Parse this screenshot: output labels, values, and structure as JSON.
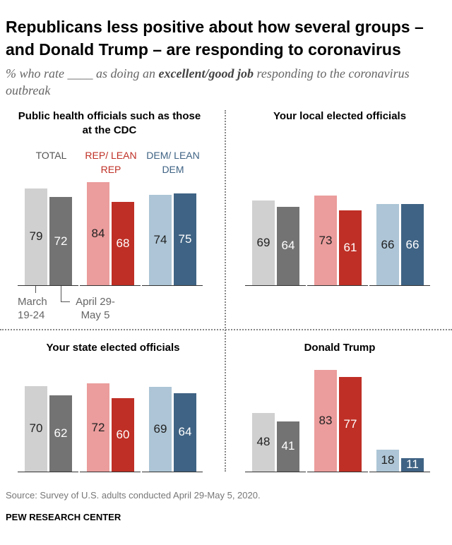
{
  "title": "Republicans less positive about how several groups – and Donald Trump – are responding to coronavirus",
  "subtitle_pre": "% who rate ____ as doing an ",
  "subtitle_bold": "excellent/good job",
  "subtitle_post": " responding to the coronavirus outbreak",
  "groups": {
    "total": "TOTAL",
    "rep": "REP/ LEAN REP",
    "dem": "DEM/ LEAN DEM"
  },
  "annotations": {
    "march": "March 19-24",
    "april": "April 29- May 5"
  },
  "source": "Source: Survey of U.S. adults conducted April 29-May 5, 2020.",
  "footer": "PEW RESEARCH CENTER",
  "colors": {
    "total_mar": "#d0d0d0",
    "total_apr": "#737373",
    "rep_mar": "#eb9c9c",
    "rep_apr": "#bf2f25",
    "dem_mar": "#adc5d6",
    "dem_apr": "#3f6384"
  },
  "chart_data": [
    {
      "type": "bar",
      "title": "Public health officials such as those at the CDC",
      "categories": [
        "Total",
        "Rep/Lean Rep",
        "Dem/Lean Dem"
      ],
      "series": [
        {
          "name": "March 19-24",
          "values": [
            79,
            84,
            74
          ]
        },
        {
          "name": "April 29-May 5",
          "values": [
            72,
            68,
            75
          ]
        }
      ]
    },
    {
      "type": "bar",
      "title": "Your local elected officials",
      "categories": [
        "Total",
        "Rep/Lean Rep",
        "Dem/Lean Dem"
      ],
      "series": [
        {
          "name": "March 19-24",
          "values": [
            69,
            73,
            66
          ]
        },
        {
          "name": "April 29-May 5",
          "values": [
            64,
            61,
            66
          ]
        }
      ]
    },
    {
      "type": "bar",
      "title": "Your state elected officials",
      "categories": [
        "Total",
        "Rep/Lean Rep",
        "Dem/Lean Dem"
      ],
      "series": [
        {
          "name": "March 19-24",
          "values": [
            70,
            72,
            69
          ]
        },
        {
          "name": "April 29-May 5",
          "values": [
            62,
            60,
            64
          ]
        }
      ]
    },
    {
      "type": "bar",
      "title": "Donald Trump",
      "categories": [
        "Total",
        "Rep/Lean Rep",
        "Dem/Lean Dem"
      ],
      "series": [
        {
          "name": "March 19-24",
          "values": [
            48,
            83,
            18
          ]
        },
        {
          "name": "April 29-May 5",
          "values": [
            41,
            77,
            11
          ]
        }
      ]
    }
  ]
}
